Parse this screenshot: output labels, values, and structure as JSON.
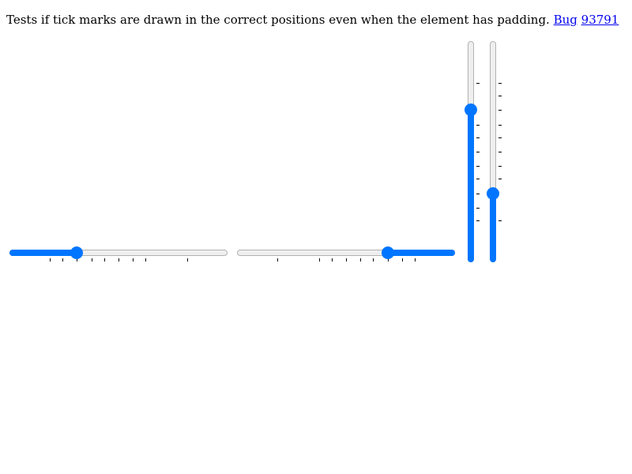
{
  "description": {
    "text": "Tests if tick marks are drawn in the correct positions even when the element has padding.",
    "link_bug_label": "Bug",
    "link_id_label": "93791"
  },
  "colors": {
    "accent": "#0075ff",
    "track": "#efefef",
    "track_border": "#b2b2b2",
    "tick": "#000000"
  },
  "sliders": [
    {
      "name": "range-slider-ltr",
      "orientation": "horizontal",
      "direction": "ltr",
      "value_fraction": 0.3,
      "tick_fractions": [
        0.17,
        0.23,
        0.3,
        0.37,
        0.43,
        0.5,
        0.57,
        0.63,
        0.83
      ]
    },
    {
      "name": "range-slider-rtl",
      "orientation": "horizontal",
      "direction": "rtl",
      "value_fraction": 0.3,
      "tick_fractions": [
        0.17,
        0.23,
        0.3,
        0.37,
        0.43,
        0.5,
        0.57,
        0.63,
        0.83
      ]
    },
    {
      "name": "range-slider-vertical-1",
      "orientation": "vertical",
      "direction": "btt",
      "value_fraction": 0.7,
      "tick_fractions": [
        0.17,
        0.37,
        0.43,
        0.5,
        0.57,
        0.63,
        0.7,
        0.77,
        0.83
      ]
    },
    {
      "name": "range-slider-vertical-2",
      "orientation": "vertical",
      "direction": "btt",
      "value_fraction": 0.3,
      "tick_fractions": [
        0.17,
        0.23,
        0.3,
        0.37,
        0.43,
        0.5,
        0.57,
        0.63,
        0.83
      ]
    }
  ]
}
